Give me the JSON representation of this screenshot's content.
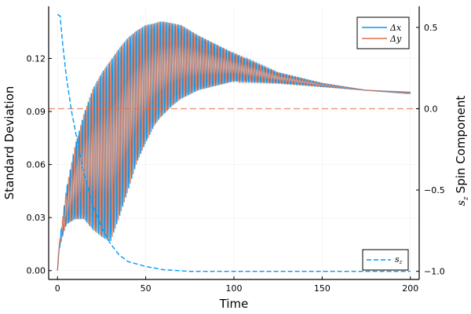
{
  "chart_data": {
    "type": "line",
    "xlabel": "Time",
    "ylabel": "Standard Deviation",
    "ylabel_right": "Spin Component",
    "ylabel_right_symbol": "s",
    "ylabel_right_sub": "z",
    "xlim": [
      -5,
      205
    ],
    "ylim": [
      -0.005,
      0.1495
    ],
    "ylim_right": [
      -1.05,
      0.63
    ],
    "xticks": [
      0,
      50,
      100,
      150,
      200
    ],
    "xtick_labels": [
      "0",
      "50",
      "100",
      "150",
      "200"
    ],
    "yticks": [
      0,
      0.03,
      0.06,
      0.09,
      0.12
    ],
    "ytick_labels": [
      "0.00",
      "0.03",
      "0.06",
      "0.09",
      "0.12"
    ],
    "yticks_right": [
      -1.0,
      -0.5,
      0.0,
      0.5
    ],
    "ytick_right_labels": [
      "−1.0",
      "−0.5",
      "0.0",
      "0.5"
    ],
    "grid": true,
    "legend": [
      {
        "label": "Δx",
        "color": "#009af9",
        "style": "solid",
        "placement": "top-right"
      },
      {
        "label": "Δy",
        "color": "#e26f46",
        "style": "solid",
        "placement": "top-right"
      },
      {
        "label": "s",
        "sub": "z",
        "color": "#009af9",
        "style": "dashed",
        "placement": "bottom-right"
      }
    ],
    "oscillation_period": 1.7,
    "envelope": {
      "t": [
        0,
        1,
        3,
        5,
        10,
        15,
        20,
        25,
        30,
        35,
        40,
        45,
        50,
        55,
        58,
        60,
        65,
        70,
        80,
        100,
        125,
        150,
        175,
        200
      ],
      "upper": [
        0,
        0.015,
        0.03,
        0.046,
        0.071,
        0.089,
        0.103,
        0.112,
        0.119,
        0.126,
        0.132,
        0.136,
        0.139,
        0.14,
        0.141,
        0.141,
        0.14,
        0.139,
        0.133,
        0.123,
        0.112,
        0.106,
        0.102,
        0.101
      ],
      "lower": [
        0,
        0.012,
        0.02,
        0.026,
        0.029,
        0.029,
        0.023,
        0.019,
        0.016,
        0.03,
        0.045,
        0.061,
        0.072,
        0.082,
        0.086,
        0.088,
        0.093,
        0.097,
        0.102,
        0.107,
        0.106,
        0.104,
        0.102,
        0.1
      ]
    },
    "sz_series": {
      "name": "s_z",
      "axis": "right",
      "t": [
        0,
        1.5,
        3,
        5,
        7.7,
        10,
        15,
        20,
        25,
        30,
        35,
        40,
        50,
        60,
        75,
        100,
        200
      ],
      "values": [
        0.58,
        0.57,
        0.39,
        0.2,
        0.0,
        -0.13,
        -0.4,
        -0.59,
        -0.73,
        -0.83,
        -0.9,
        -0.94,
        -0.97,
        -0.99,
        -1.0,
        -1.0,
        -1.0
      ]
    },
    "hline": {
      "axis": "right",
      "value": 0.0,
      "color": "#e26f46",
      "style": "dashed"
    },
    "colors": {
      "dx": "#009af9",
      "dy": "#e26f46",
      "sz": "#009af9"
    }
  }
}
